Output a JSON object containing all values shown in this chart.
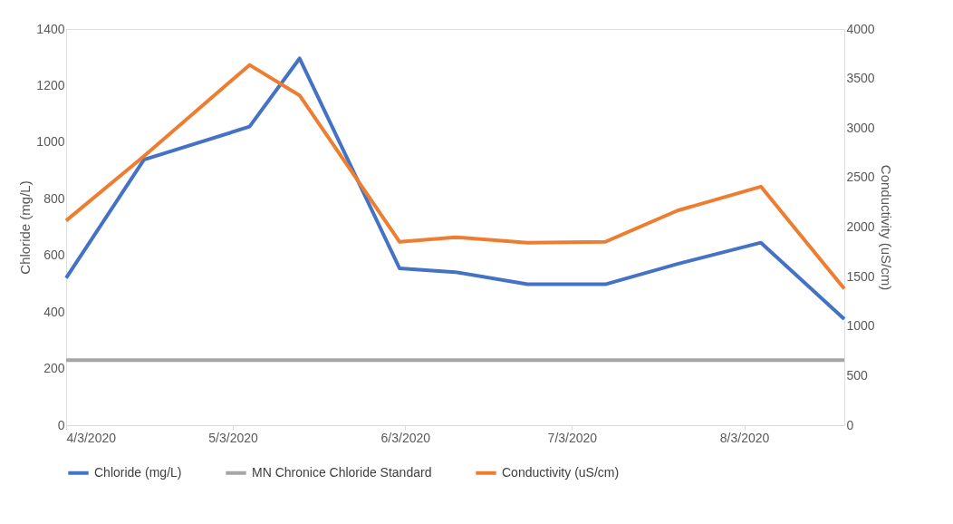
{
  "chart_data": {
    "type": "line",
    "ylabel": "Chloride (mg/L)",
    "y2label": "Conductivity (uS/cm)",
    "x": [
      "2020-04-03",
      "2020-04-17",
      "2020-05-06",
      "2020-05-15",
      "2020-06-02",
      "2020-06-12",
      "2020-06-25",
      "2020-07-09",
      "2020-07-22",
      "2020-08-06",
      "2020-08-21"
    ],
    "series": [
      {
        "name": "Chloride (mg/L)",
        "color": "#4472c4",
        "values": [
          520,
          938,
          1055,
          1296,
          554,
          541,
          498,
          498,
          570,
          645,
          375
        ]
      },
      {
        "name": "MN Chronice Chloride Standard",
        "color": "#a5a5a5",
        "x": [
          "2020-04-03",
          "2020-08-21"
        ],
        "values": [
          230,
          230
        ]
      },
      {
        "name": "Conductivity (uS/cm)",
        "color": "#ed7d31",
        "axis": "y2",
        "values": [
          2065,
          2716,
          3637,
          3330,
          1851,
          1898,
          1842,
          1851,
          2167,
          2409,
          1377
        ]
      }
    ],
    "xlim": [
      "2020-04-03",
      "2020-08-21"
    ],
    "xticks": [
      {
        "value": "2020-04-03",
        "label": "4/3/2020"
      },
      {
        "value": "2020-05-03",
        "label": "5/3/2020"
      },
      {
        "value": "2020-06-03",
        "label": "6/3/2020"
      },
      {
        "value": "2020-07-03",
        "label": "7/3/2020"
      },
      {
        "value": "2020-08-03",
        "label": "8/3/2020"
      }
    ],
    "ylim": [
      0,
      1400
    ],
    "yticks": [
      0,
      200,
      400,
      600,
      800,
      1000,
      1200,
      1400
    ],
    "y2lim": [
      0,
      4000
    ],
    "y2ticks": [
      0,
      500,
      1000,
      1500,
      2000,
      2500,
      3000,
      3500,
      4000
    ],
    "grid": false,
    "legend": "bottom",
    "marker": "none",
    "line_style": "solid"
  }
}
